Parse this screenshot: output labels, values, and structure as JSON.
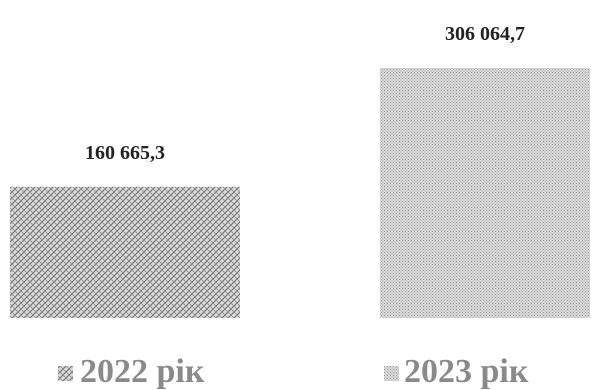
{
  "chart_data": {
    "type": "bar",
    "categories": [
      "2022 рік",
      "2023 рік"
    ],
    "values": [
      160665.3,
      306064.7
    ],
    "data_labels": [
      "160 665,3",
      "306 064,7"
    ],
    "title": "",
    "xlabel": "",
    "ylabel": "",
    "grid": false,
    "legend_position": "bottom",
    "ylim": [
      0,
      306064.7
    ],
    "series_fills": [
      "crosshatch",
      "fine-dots"
    ],
    "colors": {
      "bar_2022_base": "#dcdcdc",
      "bar_2022_pattern": "#6e6e6e",
      "bar_2023_base": "#d9d9d9",
      "bar_2023_pattern": "#9a9a9a",
      "label_text": "#222222",
      "legend_text": "#8a8a8a"
    }
  }
}
